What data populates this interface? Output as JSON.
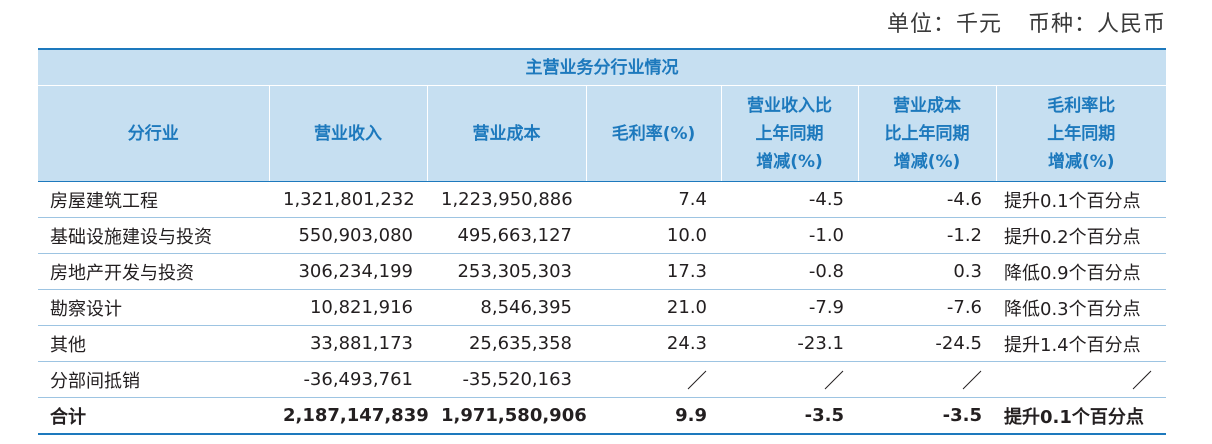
{
  "unit_line": {
    "unit": "单位：千元",
    "currency": "币种：人民币"
  },
  "table": {
    "caption": "主营业务分行业情况",
    "headers": [
      "分行业",
      "营业收入",
      "营业成本",
      "毛利率(%)",
      "营业收入比\n上年同期\n增减(%)",
      "营业成本\n比上年同期\n增减(%)",
      "毛利率比\n上年同期\n增减(%)"
    ],
    "rows": [
      {
        "industry": "房屋建筑工程",
        "revenue": "1,321,801,232",
        "cost": "1,223,950,886",
        "gross_margin": "7.4",
        "revenue_change": "-4.5",
        "cost_change": "-4.6",
        "margin_change": "提升0.1个百分点"
      },
      {
        "industry": "基础设施建设与投资",
        "revenue": "550,903,080",
        "cost": "495,663,127",
        "gross_margin": "10.0",
        "revenue_change": "-1.0",
        "cost_change": "-1.2",
        "margin_change": "提升0.2个百分点"
      },
      {
        "industry": "房地产开发与投资",
        "revenue": "306,234,199",
        "cost": "253,305,303",
        "gross_margin": "17.3",
        "revenue_change": "-0.8",
        "cost_change": "0.3",
        "margin_change": "降低0.9个百分点"
      },
      {
        "industry": "勘察设计",
        "revenue": "10,821,916",
        "cost": "8,546,395",
        "gross_margin": "21.0",
        "revenue_change": "-7.9",
        "cost_change": "-7.6",
        "margin_change": "降低0.3个百分点"
      },
      {
        "industry": "其他",
        "revenue": "33,881,173",
        "cost": "25,635,358",
        "gross_margin": "24.3",
        "revenue_change": "-23.1",
        "cost_change": "-24.5",
        "margin_change": "提升1.4个百分点"
      },
      {
        "industry": "分部间抵销",
        "revenue": "-36,493,761",
        "cost": "-35,520,163",
        "gross_margin": "",
        "revenue_change": "",
        "cost_change": "",
        "margin_change": ""
      }
    ],
    "total": {
      "industry": "合计",
      "revenue": "2,187,147,839",
      "cost": "1,971,580,906",
      "gross_margin": "9.9",
      "revenue_change": "-3.5",
      "cost_change": "-3.5",
      "margin_change": "提升0.1个百分点"
    }
  },
  "colors": {
    "header_bg": "#c6dff1",
    "header_text": "#1d79bd",
    "rule": "#1d79bd"
  }
}
